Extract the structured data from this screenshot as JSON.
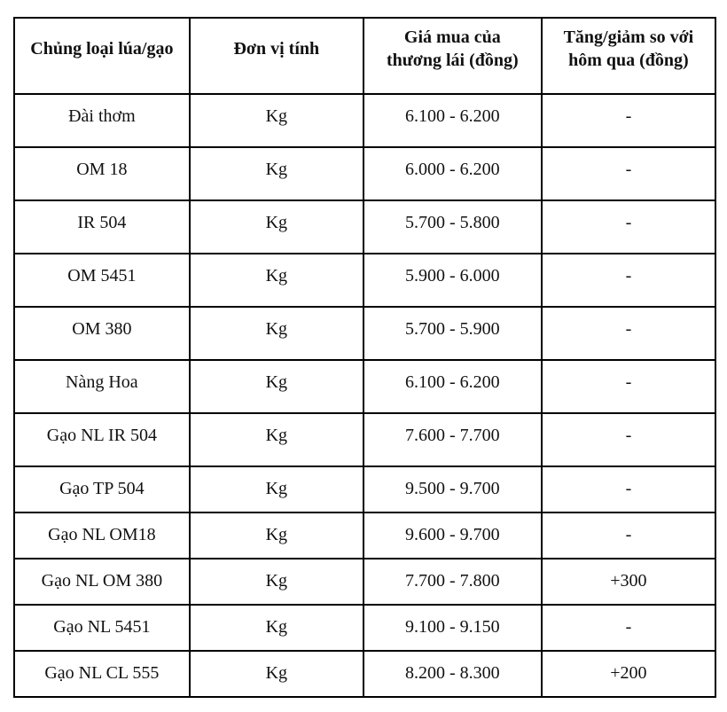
{
  "table": {
    "headers": [
      {
        "line1": "Chủng loại lúa/gạo",
        "line2": ""
      },
      {
        "line1": "Đơn vị tính",
        "line2": ""
      },
      {
        "line1": "Giá mua của",
        "line2": "thương lái (đồng)"
      },
      {
        "line1": "Tăng/giảm so với",
        "line2": "hôm qua (đồng)"
      }
    ],
    "rows": [
      {
        "type": "Đài thơm",
        "unit": "Kg",
        "price": "6.100 - 6.200",
        "change": "-"
      },
      {
        "type": "OM 18",
        "unit": "Kg",
        "price": "6.000 - 6.200",
        "change": "-"
      },
      {
        "type": "IR 504",
        "unit": "Kg",
        "price": "5.700 - 5.800",
        "change": "-"
      },
      {
        "type": "OM 5451",
        "unit": "Kg",
        "price": "5.900 - 6.000",
        "change": "-"
      },
      {
        "type": "OM 380",
        "unit": "Kg",
        "price": "5.700 - 5.900",
        "change": "-"
      },
      {
        "type": "Nàng Hoa",
        "unit": "Kg",
        "price": "6.100 - 6.200",
        "change": "-"
      },
      {
        "type": "Gạo NL IR 504",
        "unit": "Kg",
        "price": "7.600 - 7.700",
        "change": "-"
      },
      {
        "type": "Gạo TP 504",
        "unit": "Kg",
        "price": "9.500 - 9.700",
        "change": "-"
      },
      {
        "type": "Gạo NL OM18",
        "unit": "Kg",
        "price": "9.600 - 9.700",
        "change": "-"
      },
      {
        "type": "Gạo NL OM 380",
        "unit": "Kg",
        "price": "7.700 - 7.800",
        "change": "+300"
      },
      {
        "type": "Gạo NL 5451",
        "unit": "Kg",
        "price": "9.100 - 9.150",
        "change": "-"
      },
      {
        "type": "Gạo NL CL 555",
        "unit": "Kg",
        "price": "8.200 - 8.300",
        "change": "+200"
      }
    ]
  },
  "chart_data": {
    "type": "table",
    "columns": [
      "Chủng loại lúa/gạo",
      "Đơn vị tính",
      "Giá mua của thương lái (đồng)",
      "Tăng/giảm so với hôm qua (đồng)"
    ],
    "rows": [
      [
        "Đài thơm",
        "Kg",
        "6.100 - 6.200",
        "-"
      ],
      [
        "OM 18",
        "Kg",
        "6.000 - 6.200",
        "-"
      ],
      [
        "IR 504",
        "Kg",
        "5.700 - 5.800",
        "-"
      ],
      [
        "OM 5451",
        "Kg",
        "5.900 - 6.000",
        "-"
      ],
      [
        "OM 380",
        "Kg",
        "5.700 - 5.900",
        "-"
      ],
      [
        "Nàng Hoa",
        "Kg",
        "6.100 - 6.200",
        "-"
      ],
      [
        "Gạo NL IR 504",
        "Kg",
        "7.600 - 7.700",
        "-"
      ],
      [
        "Gạo TP 504",
        "Kg",
        "9.500 - 9.700",
        "-"
      ],
      [
        "Gạo NL OM18",
        "Kg",
        "9.600 - 9.700",
        "-"
      ],
      [
        "Gạo NL OM 380",
        "Kg",
        "7.700 - 7.800",
        "+300"
      ],
      [
        "Gạo NL 5451",
        "Kg",
        "9.100 - 9.150",
        "-"
      ],
      [
        "Gạo NL CL 555",
        "Kg",
        "8.200 - 8.300",
        "+200"
      ]
    ]
  },
  "colors": {
    "background": "#ffffff",
    "border": "#000000",
    "text": "#111111"
  }
}
